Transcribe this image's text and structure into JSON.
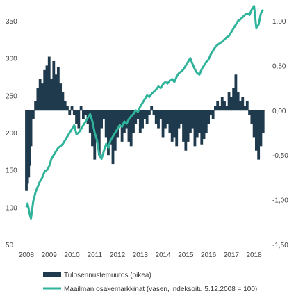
{
  "chart_data": {
    "type": "bar+line",
    "colors": {
      "bars": "#1f3a4d",
      "line": "#2fb39a",
      "text": "#404040"
    },
    "x_ticks": [
      "2008",
      "2009",
      "2010",
      "2011",
      "2012",
      "2013",
      "2014",
      "2015",
      "2016",
      "2017",
      "2018"
    ],
    "x_range": [
      2008.0,
      2018.5
    ],
    "y_left": {
      "ticks": [
        "350",
        "300",
        "250",
        "200",
        "150",
        "100",
        "50"
      ],
      "range": [
        50,
        350
      ]
    },
    "y_right": {
      "ticks": [
        "1,00",
        "0,50",
        "0,00",
        "-0,50",
        "-1,00",
        "-1,50"
      ],
      "range": [
        -1.5,
        1.0
      ]
    },
    "legend": [
      {
        "label": "Tulosennustemuutos (oikea)",
        "kind": "bar"
      },
      {
        "label": "Maailman osakemarkkinat (vasen, indeksoitu 5.12.2008 = 100)",
        "kind": "line"
      }
    ],
    "series": [
      {
        "name": "Tulosennustemuutos (oikea)",
        "axis": "right",
        "kind": "bar",
        "x": [
          2008.0,
          2008.05,
          2008.1,
          2008.15,
          2008.2,
          2008.3,
          2008.4,
          2008.5,
          2008.6,
          2008.7,
          2008.8,
          2008.9,
          2009.0,
          2009.1,
          2009.2,
          2009.3,
          2009.4,
          2009.5,
          2009.6,
          2009.7,
          2009.8,
          2009.9,
          2010.0,
          2010.1,
          2010.2,
          2010.3,
          2010.4,
          2010.5,
          2010.6,
          2010.7,
          2010.8,
          2010.9,
          2011.0,
          2011.1,
          2011.2,
          2011.3,
          2011.4,
          2011.5,
          2011.6,
          2011.7,
          2011.8,
          2011.9,
          2012.0,
          2012.1,
          2012.2,
          2012.3,
          2012.4,
          2012.5,
          2012.6,
          2012.7,
          2012.8,
          2012.9,
          2013.0,
          2013.1,
          2013.2,
          2013.3,
          2013.4,
          2013.5,
          2013.6,
          2013.7,
          2013.8,
          2013.9,
          2014.0,
          2014.1,
          2014.2,
          2014.3,
          2014.4,
          2014.5,
          2014.6,
          2014.7,
          2014.8,
          2014.9,
          2015.0,
          2015.1,
          2015.2,
          2015.3,
          2015.4,
          2015.5,
          2015.6,
          2015.7,
          2015.8,
          2015.9,
          2016.0,
          2016.1,
          2016.2,
          2016.3,
          2016.4,
          2016.5,
          2016.6,
          2016.7,
          2016.8,
          2016.9,
          2017.0,
          2017.1,
          2017.2,
          2017.3,
          2017.4,
          2017.5,
          2017.6,
          2017.7,
          2017.8,
          2017.9,
          2018.0,
          2018.1,
          2018.2,
          2018.3,
          2018.4
        ],
        "values": [
          -0.9,
          -0.82,
          -0.75,
          -0.62,
          -0.4,
          -0.1,
          0.1,
          0.25,
          0.35,
          0.3,
          0.45,
          0.5,
          0.6,
          0.35,
          0.55,
          0.4,
          0.48,
          0.3,
          0.2,
          0.1,
          0.05,
          -0.05,
          0.05,
          -0.05,
          -0.15,
          -0.2,
          0.05,
          -0.1,
          -0.05,
          -0.15,
          -0.25,
          -0.4,
          -0.55,
          -0.35,
          -0.5,
          -0.2,
          -0.1,
          -0.3,
          -0.5,
          -0.38,
          -0.6,
          -0.45,
          -0.3,
          -0.15,
          -0.35,
          -0.25,
          -0.2,
          -0.35,
          -0.4,
          -0.25,
          -0.15,
          -0.1,
          -0.25,
          -0.2,
          -0.1,
          -0.15,
          -0.05,
          0.05,
          -0.05,
          -0.15,
          -0.2,
          -0.1,
          -0.3,
          -0.2,
          -0.15,
          -0.25,
          -0.35,
          -0.3,
          -0.4,
          -0.2,
          -0.15,
          -0.35,
          -0.45,
          -0.35,
          -0.25,
          -0.2,
          -0.4,
          -0.3,
          -0.25,
          -0.38,
          -0.32,
          -0.25,
          -0.15,
          -0.05,
          -0.1,
          0.05,
          0.1,
          0.05,
          0.15,
          0.1,
          0.05,
          0.2,
          0.15,
          0.25,
          0.4,
          0.2,
          0.1,
          0.15,
          0.05,
          0.1,
          -0.05,
          -0.15,
          -0.3,
          -0.45,
          -0.55,
          -0.4,
          -0.25
        ]
      },
      {
        "name": "Maailman osakemarkkinat (vasen, indeksoitu 5.12.2008 = 100)",
        "axis": "left",
        "kind": "line",
        "x": [
          2008.0,
          2008.05,
          2008.1,
          2008.15,
          2008.2,
          2008.3,
          2008.4,
          2008.5,
          2008.6,
          2008.7,
          2008.8,
          2008.9,
          2009.0,
          2009.1,
          2009.2,
          2009.3,
          2009.4,
          2009.5,
          2009.6,
          2009.7,
          2009.8,
          2009.9,
          2010.0,
          2010.1,
          2010.2,
          2010.3,
          2010.4,
          2010.5,
          2010.6,
          2010.7,
          2010.8,
          2010.9,
          2011.0,
          2011.1,
          2011.2,
          2011.3,
          2011.4,
          2011.5,
          2011.6,
          2011.7,
          2011.8,
          2011.9,
          2012.0,
          2012.1,
          2012.2,
          2012.3,
          2012.4,
          2012.5,
          2012.6,
          2012.7,
          2012.8,
          2012.9,
          2013.0,
          2013.1,
          2013.2,
          2013.3,
          2013.4,
          2013.5,
          2013.6,
          2013.7,
          2013.8,
          2013.9,
          2014.0,
          2014.1,
          2014.2,
          2014.3,
          2014.4,
          2014.5,
          2014.6,
          2014.7,
          2014.8,
          2014.9,
          2015.0,
          2015.1,
          2015.2,
          2015.3,
          2015.4,
          2015.5,
          2015.6,
          2015.7,
          2015.8,
          2015.9,
          2016.0,
          2016.1,
          2016.2,
          2016.3,
          2016.4,
          2016.5,
          2016.6,
          2016.7,
          2016.8,
          2016.9,
          2017.0,
          2017.1,
          2017.2,
          2017.3,
          2017.4,
          2017.5,
          2017.6,
          2017.7,
          2017.8,
          2017.9,
          2018.0,
          2018.1,
          2018.2,
          2018.3,
          2018.4
        ],
        "values": [
          100,
          105,
          98,
          90,
          85,
          108,
          120,
          128,
          135,
          140,
          148,
          150,
          155,
          165,
          170,
          175,
          180,
          182,
          185,
          190,
          195,
          200,
          205,
          210,
          198,
          200,
          205,
          210,
          215,
          220,
          225,
          215,
          200,
          190,
          170,
          165,
          175,
          185,
          180,
          190,
          195,
          200,
          205,
          210,
          208,
          215,
          212,
          218,
          222,
          225,
          230,
          228,
          235,
          240,
          245,
          250,
          248,
          252,
          255,
          258,
          262,
          260,
          265,
          268,
          266,
          270,
          272,
          268,
          275,
          280,
          282,
          285,
          290,
          295,
          300,
          292,
          285,
          280,
          278,
          285,
          290,
          295,
          298,
          305,
          310,
          315,
          318,
          320,
          322,
          325,
          328,
          330,
          335,
          340,
          345,
          350,
          352,
          355,
          358,
          360,
          358,
          365,
          370,
          340,
          345,
          360,
          365
        ]
      }
    ]
  }
}
